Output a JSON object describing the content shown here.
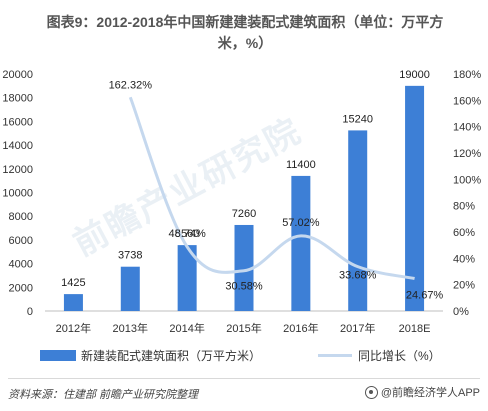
{
  "chart_data": {
    "type": "bar",
    "title_line1": "图表9：2012-2018年中国新建建装配式建筑面积（单位：万平方",
    "title_line2": "米，%）",
    "categories": [
      "2012年",
      "2013年",
      "2014年",
      "2015年",
      "2016年",
      "2017年",
      "2018E"
    ],
    "series": [
      {
        "name": "新建装配式建筑面积（万平方米）",
        "type": "bar",
        "axis": "left",
        "color": "#3d7fd6",
        "values": [
          1425,
          3738,
          5560,
          7260,
          11400,
          15240,
          19000
        ],
        "labels": [
          "1425",
          "3738",
          "5560",
          "7260",
          "11400",
          "15240",
          "19000"
        ]
      },
      {
        "name": "同比增长（%）",
        "type": "line",
        "axis": "right",
        "color": "#c5d8ee",
        "values": [
          null,
          162.32,
          48.74,
          30.58,
          57.02,
          33.68,
          24.67
        ],
        "labels": [
          "",
          "162.32%",
          "48.74%",
          "30.58%",
          "57.02%",
          "33.68%",
          "24.67%"
        ]
      }
    ],
    "left_axis": {
      "min": 0,
      "max": 20000,
      "step": 2000,
      "ticks": [
        "0",
        "2000",
        "4000",
        "6000",
        "8000",
        "10000",
        "12000",
        "14000",
        "16000",
        "18000",
        "20000"
      ]
    },
    "right_axis": {
      "min": 0,
      "max": 180,
      "step": 20,
      "ticks": [
        "0%",
        "20%",
        "40%",
        "60%",
        "80%",
        "100%",
        "120%",
        "140%",
        "160%",
        "180%"
      ]
    },
    "grid": false,
    "legend_position": "bottom"
  },
  "footer": {
    "source": "资料来源：住建部  前瞻产业研究院整理",
    "brand": "@前瞻经济学人APP"
  },
  "watermark": "前瞻产业研究院"
}
